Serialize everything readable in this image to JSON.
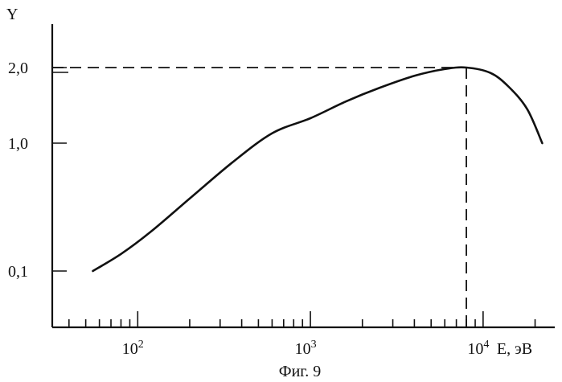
{
  "chart_data": {
    "type": "line",
    "xscale": "log",
    "xlim": [
      32,
      26000
    ],
    "xlabel": "E, эВ",
    "ylabel": "Y",
    "xticks": [
      {
        "value": 100,
        "base": "10",
        "exp": "2"
      },
      {
        "value": 1000,
        "base": "10",
        "exp": "3"
      },
      {
        "value": 10000,
        "base": "10",
        "exp": "4"
      }
    ],
    "yticks": [
      {
        "value": 0.1,
        "label": "0,1"
      },
      {
        "value": 1.0,
        "label": "1,0"
      },
      {
        "value": 2.0,
        "label": "2,0"
      }
    ],
    "series": [
      {
        "x": [
          55,
          80,
          120,
          200,
          350,
          600,
          1000,
          1600,
          2500,
          4000,
          6000,
          8000,
          11000,
          14000,
          18000,
          22000
        ],
        "y": [
          0.1,
          0.22,
          0.38,
          0.61,
          0.86,
          1.13,
          1.33,
          1.55,
          1.73,
          1.89,
          1.98,
          2.0,
          1.93,
          1.75,
          1.45,
          1.0
        ]
      }
    ],
    "reference_point": {
      "x": 8000,
      "y": 2.0
    },
    "caption": "Фиг. 9",
    "grid": false
  }
}
